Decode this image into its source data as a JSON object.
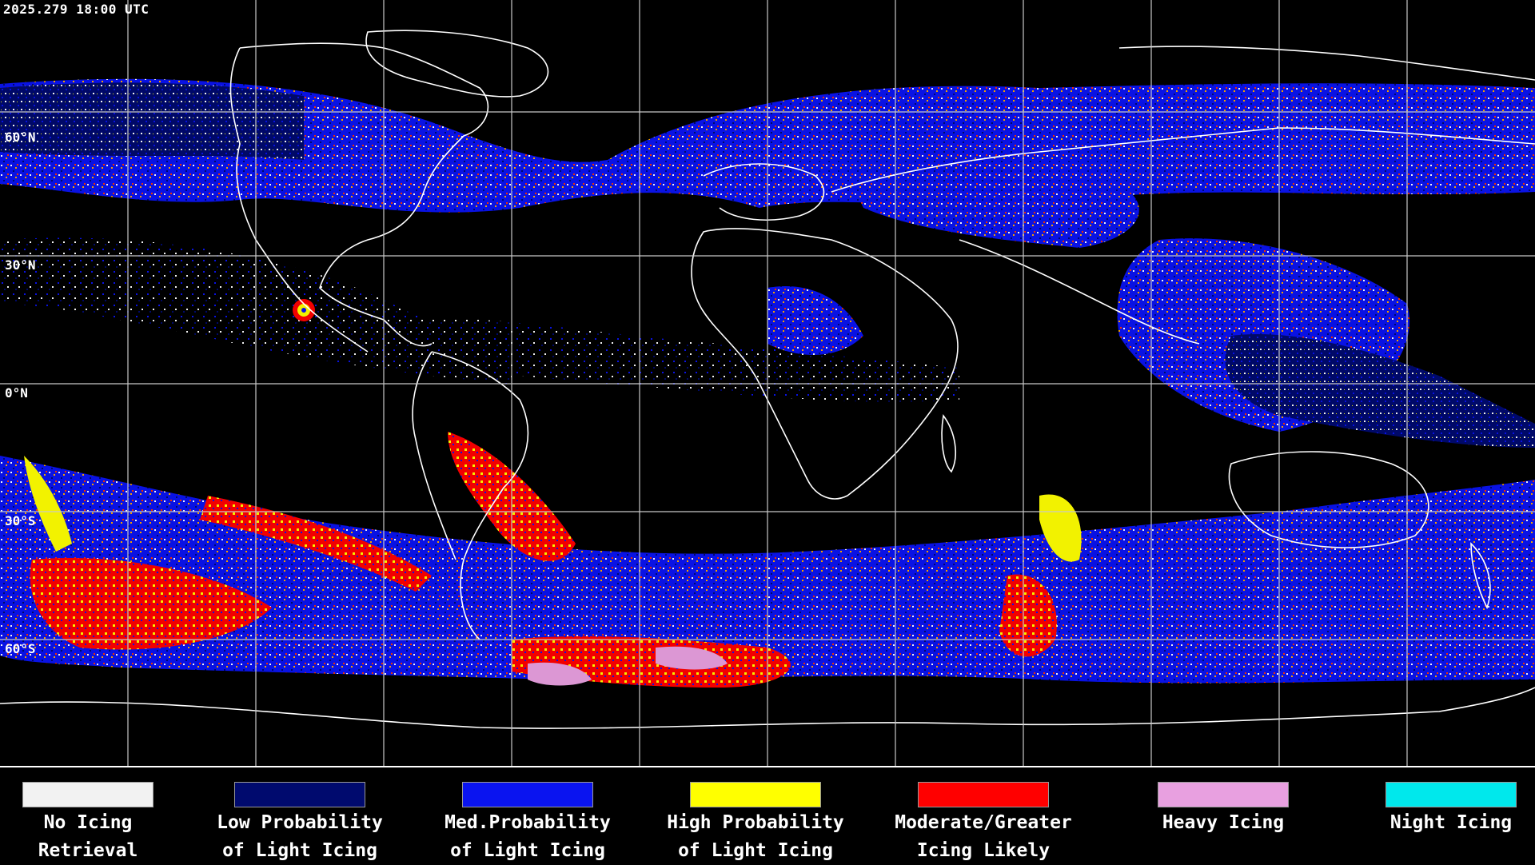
{
  "header": {
    "timestamp": "2025.279 18:00 UTC"
  },
  "map": {
    "latitude_labels": [
      "60°N",
      "30°N",
      "0°N",
      "30°S",
      "60°S"
    ]
  },
  "legend": {
    "items": [
      {
        "line1": "No Icing",
        "line2": "Retrieval",
        "color": "#f2f2f2"
      },
      {
        "line1": "Low Probability",
        "line2": "of Light Icing",
        "color": "#000a6e"
      },
      {
        "line1": "Med.Probability",
        "line2": "of Light Icing",
        "color": "#0a14f0"
      },
      {
        "line1": "High Probability",
        "line2": "of Light Icing",
        "color": "#ffff00"
      },
      {
        "line1": "Moderate/Greater",
        "line2": "Icing Likely",
        "color": "#ff0000"
      },
      {
        "line1": "Heavy Icing",
        "line2": "",
        "color": "#e8a0e0"
      },
      {
        "line1": "Night Icing",
        "line2": "",
        "color": "#00e8ec"
      }
    ]
  }
}
